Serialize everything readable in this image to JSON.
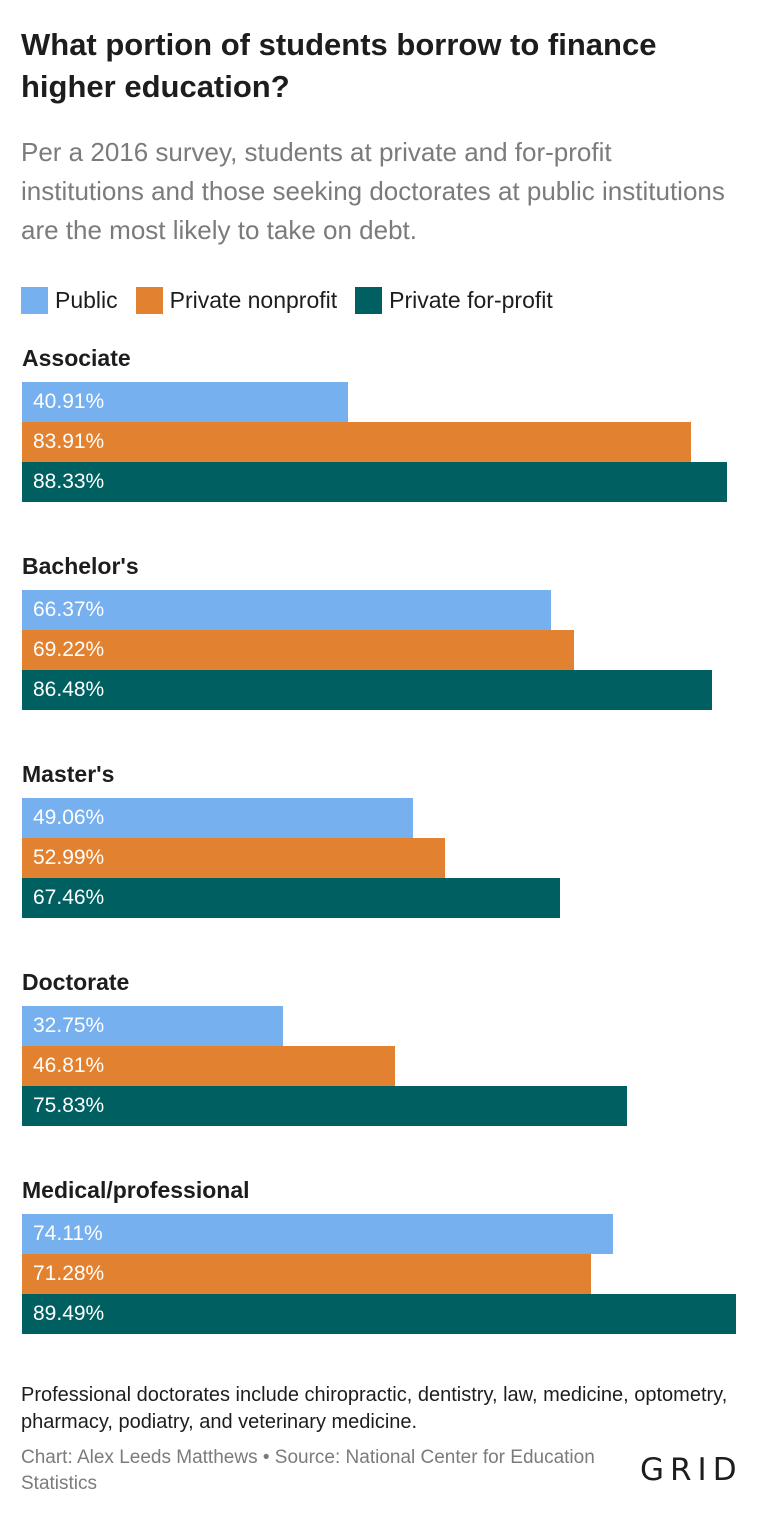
{
  "chart_data": {
    "type": "bar",
    "orientation": "horizontal",
    "title": "What portion of students borrow to finance higher education?",
    "subtitle": "Per a 2016 survey, students at private and for-profit institutions and those seeking doctorates at public institutions are the most likely to take on debt.",
    "xlim": [
      0,
      90
    ],
    "legend_position": "top-left",
    "grid": false,
    "categories": [
      "Associate",
      "Bachelor's",
      "Master's",
      "Doctorate",
      "Medical/professional"
    ],
    "series": [
      {
        "name": "Public",
        "color": "#76b0ee",
        "values": [
          40.91,
          66.37,
          49.06,
          32.75,
          74.11
        ],
        "labels": [
          "40.91%",
          "66.37%",
          "49.06%",
          "32.75%",
          "74.11%"
        ]
      },
      {
        "name": "Private nonprofit",
        "color": "#e2812f",
        "values": [
          83.91,
          69.22,
          52.99,
          46.81,
          71.28
        ],
        "labels": [
          "83.91%",
          "69.22%",
          "52.99%",
          "46.81%",
          "71.28%"
        ]
      },
      {
        "name": "Private for-profit",
        "color": "#005f60",
        "values": [
          88.33,
          86.48,
          67.46,
          75.83,
          89.49
        ],
        "labels": [
          "88.33%",
          "86.48%",
          "67.46%",
          "75.83%",
          "89.49%"
        ]
      }
    ]
  },
  "note": "Professional doctorates include chiropractic, dentistry, law, medicine, optometry, pharmacy, podiatry, and veterinary medicine.",
  "source": "Chart: Alex Leeds Matthews • Source: National Center for Education Statistics",
  "logo": "GRID"
}
